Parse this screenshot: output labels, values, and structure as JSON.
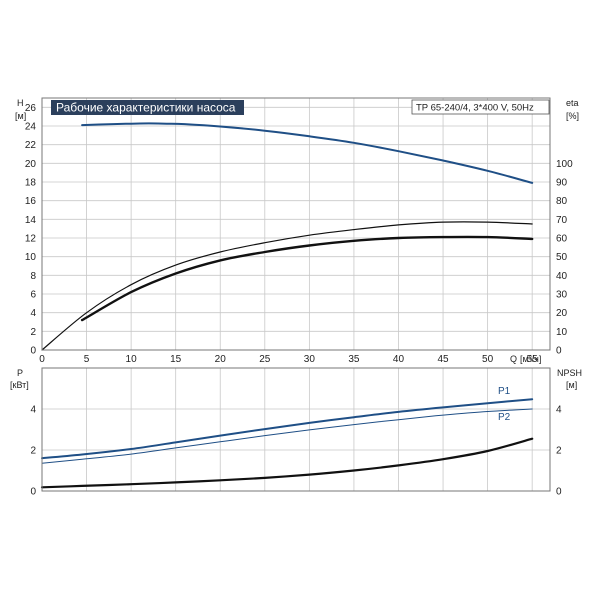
{
  "chart_data": [
    {
      "type": "line",
      "title": "Рабочие характеристики насоса",
      "model": "TP 65-240/4, 3*400 V, 50Hz",
      "xlabel": "Q",
      "xunit": "[м³/ч]",
      "xlim": [
        0,
        57
      ],
      "x_ticks": [
        "0",
        "5",
        "10",
        "15",
        "20",
        "25",
        "30",
        "35",
        "40",
        "45",
        "50",
        "55"
      ],
      "ylabel_left": "H",
      "yunit_left": "[м]",
      "ylim_left": [
        0,
        27
      ],
      "y_ticks_left": [
        "0",
        "2",
        "4",
        "6",
        "8",
        "10",
        "12",
        "14",
        "16",
        "18",
        "20",
        "22",
        "24",
        "26"
      ],
      "ylabel_right": "eta",
      "yunit_right": "[%]",
      "ylim_right": [
        0,
        135
      ],
      "y_ticks_right": [
        "0",
        "10",
        "20",
        "30",
        "40",
        "50",
        "60",
        "70",
        "80",
        "90",
        "100"
      ],
      "grid": true,
      "series": [
        {
          "axis": "left",
          "color": "#1f4f86",
          "width": 2,
          "x": [
            4.5,
            8,
            10,
            12,
            14,
            16,
            20,
            25,
            30,
            35,
            40,
            45,
            50,
            55
          ],
          "y": [
            24.1,
            24.2,
            24.25,
            24.28,
            24.25,
            24.2,
            23.95,
            23.5,
            22.9,
            22.2,
            21.3,
            20.3,
            19.2,
            17.9
          ]
        },
        {
          "axis": "right",
          "color": "#111111",
          "width": 1.2,
          "x": [
            0,
            5,
            10,
            15,
            20,
            25,
            30,
            35,
            40,
            45,
            50,
            55
          ],
          "y": [
            0,
            20,
            35,
            45.5,
            52.5,
            57.5,
            61.5,
            64.5,
            67,
            68.5,
            68.5,
            67.5
          ]
        },
        {
          "axis": "right",
          "color": "#111111",
          "width": 2.4,
          "x": [
            4.5,
            10,
            15,
            20,
            25,
            30,
            35,
            40,
            45,
            50,
            55
          ],
          "y": [
            16,
            31,
            41,
            48,
            52.5,
            56,
            58.5,
            60,
            60.5,
            60.5,
            59.5
          ]
        }
      ]
    },
    {
      "type": "line",
      "xlabel": "Q",
      "xlim": [
        0,
        57
      ],
      "ylabel_left": "P",
      "yunit_left": "[кВт]",
      "ylim_left": [
        0,
        6
      ],
      "y_ticks_left": [
        "0",
        "2",
        "4"
      ],
      "ylabel_right": "NPSH",
      "yunit_right": "[м]",
      "ylim_right": [
        0,
        6
      ],
      "y_ticks_right": [
        "0",
        "2",
        "4"
      ],
      "grid": true,
      "series": [
        {
          "name": "P1",
          "axis": "left",
          "color": "#1f4f86",
          "width": 2,
          "x": [
            0,
            4.5,
            10,
            15,
            20,
            25,
            30,
            35,
            40,
            45,
            50,
            55
          ],
          "y": [
            1.6,
            1.78,
            2.05,
            2.37,
            2.7,
            3.02,
            3.32,
            3.6,
            3.86,
            4.08,
            4.28,
            4.48
          ]
        },
        {
          "name": "P2",
          "axis": "left",
          "color": "#1f4f86",
          "width": 1,
          "x": [
            0,
            4.5,
            10,
            15,
            20,
            25,
            30,
            35,
            40,
            45,
            50,
            55
          ],
          "y": [
            1.35,
            1.55,
            1.8,
            2.1,
            2.4,
            2.7,
            2.98,
            3.24,
            3.48,
            3.7,
            3.88,
            4.0
          ]
        },
        {
          "axis": "right",
          "color": "#111111",
          "width": 2.2,
          "x": [
            0,
            4.5,
            10,
            15,
            20,
            25,
            30,
            35,
            40,
            45,
            50,
            55
          ],
          "y": [
            0.18,
            0.25,
            0.33,
            0.42,
            0.52,
            0.64,
            0.8,
            1.0,
            1.25,
            1.55,
            1.95,
            2.55
          ]
        }
      ]
    }
  ]
}
